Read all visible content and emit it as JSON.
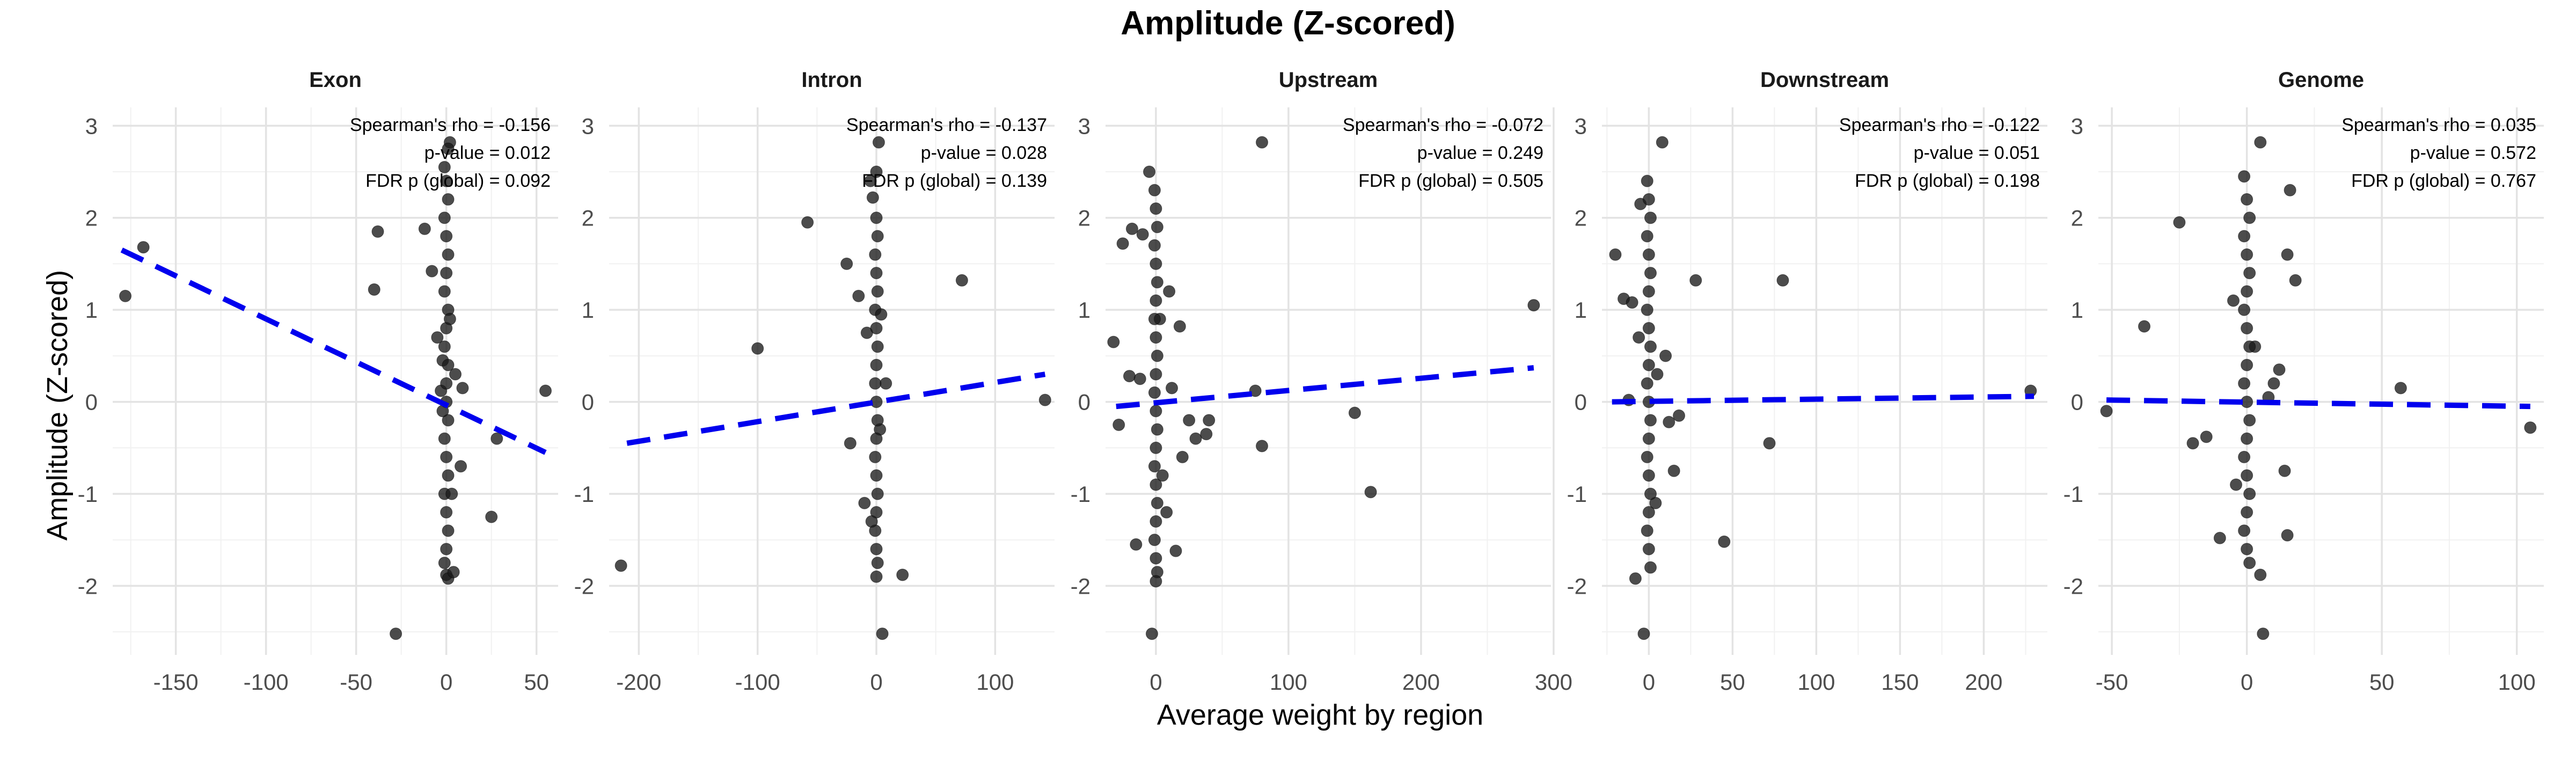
{
  "chart_data": {
    "type": "scatter",
    "title": "Amplitude (Z-scored)",
    "xlabel": "Average weight by region",
    "ylabel": "Amplitude (Z-scored)",
    "ylim": [
      -2.75,
      3.2
    ],
    "yticks": [
      -2,
      -1,
      0,
      1,
      2,
      3
    ],
    "grid": true,
    "panels": [
      {
        "name": "Exon",
        "xlim": [
          -185,
          62
        ],
        "xticks": [
          -150,
          -100,
          -50,
          0,
          50
        ],
        "xtick_labels": [
          "-150",
          "-100",
          "-50",
          "0",
          "50"
        ],
        "annotations": [
          "Spearman's rho = -0.156",
          "p-value = 0.012",
          "FDR p (global) = 0.092"
        ],
        "fit": {
          "x": [
            -180,
            55
          ],
          "y": [
            1.65,
            -0.55
          ]
        },
        "points": [
          [
            -178,
            1.15
          ],
          [
            -168,
            1.68
          ],
          [
            -38,
            1.85
          ],
          [
            -40,
            1.22
          ],
          [
            -12,
            1.88
          ],
          [
            -8,
            1.42
          ],
          [
            -28,
            -2.52
          ],
          [
            -5,
            0.7
          ],
          [
            -2,
            0.45
          ],
          [
            -3,
            0.12
          ],
          [
            5,
            0.3
          ],
          [
            8,
            -0.7
          ],
          [
            9,
            0.15
          ],
          [
            25,
            -1.25
          ],
          [
            28,
            -0.4
          ],
          [
            55,
            0.12
          ],
          [
            2,
            2.82
          ],
          [
            1,
            2.75
          ],
          [
            -1,
            2.55
          ],
          [
            0,
            2.4
          ],
          [
            1,
            2.2
          ],
          [
            -1,
            2.0
          ],
          [
            0,
            1.8
          ],
          [
            1,
            1.6
          ],
          [
            0,
            1.4
          ],
          [
            -1,
            1.2
          ],
          [
            1,
            1.0
          ],
          [
            0,
            0.8
          ],
          [
            -1,
            0.6
          ],
          [
            1,
            0.4
          ],
          [
            0,
            0.2
          ],
          [
            0,
            0.0
          ],
          [
            1,
            -0.2
          ],
          [
            -1,
            -0.4
          ],
          [
            0,
            -0.6
          ],
          [
            1,
            -0.8
          ],
          [
            -1,
            -1.0
          ],
          [
            0,
            -1.2
          ],
          [
            1,
            -1.4
          ],
          [
            0,
            -1.6
          ],
          [
            -1,
            -1.75
          ],
          [
            0,
            -1.88
          ],
          [
            1,
            -1.92
          ],
          [
            4,
            -1.85
          ],
          [
            3,
            -1.0
          ],
          [
            -2,
            -0.1
          ],
          [
            2,
            0.9
          ]
        ]
      },
      {
        "name": "Intron",
        "xlim": [
          -225,
          150
        ],
        "xticks": [
          -200,
          -100,
          0,
          100
        ],
        "xtick_labels": [
          "-200",
          "-100",
          "0",
          "100"
        ],
        "annotations": [
          "Spearman's rho = -0.137",
          "p-value = 0.028",
          "FDR p (global) = 0.139"
        ],
        "fit": {
          "x": [
            -210,
            142
          ],
          "y": [
            -0.45,
            0.3
          ]
        },
        "points": [
          [
            -215,
            -1.78
          ],
          [
            -100,
            0.58
          ],
          [
            -58,
            1.95
          ],
          [
            -25,
            1.5
          ],
          [
            -15,
            1.15
          ],
          [
            -22,
            -0.45
          ],
          [
            -10,
            -1.1
          ],
          [
            -5,
            2.4
          ],
          [
            0,
            2.5
          ],
          [
            2,
            2.82
          ],
          [
            -3,
            2.22
          ],
          [
            5,
            -2.52
          ],
          [
            22,
            -1.88
          ],
          [
            72,
            1.32
          ],
          [
            142,
            0.02
          ],
          [
            8,
            0.2
          ],
          [
            -8,
            0.75
          ],
          [
            3,
            -0.3
          ],
          [
            0,
            2.0
          ],
          [
            1,
            1.8
          ],
          [
            -1,
            1.6
          ],
          [
            0,
            1.4
          ],
          [
            1,
            1.2
          ],
          [
            -1,
            1.0
          ],
          [
            0,
            0.8
          ],
          [
            1,
            0.6
          ],
          [
            0,
            0.4
          ],
          [
            -1,
            0.2
          ],
          [
            0,
            0.0
          ],
          [
            1,
            -0.2
          ],
          [
            0,
            -0.4
          ],
          [
            -1,
            -0.6
          ],
          [
            0,
            -0.8
          ],
          [
            1,
            -1.0
          ],
          [
            0,
            -1.2
          ],
          [
            -1,
            -1.4
          ],
          [
            0,
            -1.6
          ],
          [
            1,
            -1.75
          ],
          [
            0,
            -1.9
          ],
          [
            -4,
            -1.3
          ],
          [
            4,
            0.95
          ]
        ]
      },
      {
        "name": "Upstream",
        "xlim": [
          -38,
          298
        ],
        "xticks": [
          0,
          100,
          200,
          300
        ],
        "xtick_labels": [
          "0",
          "100",
          "200",
          "300"
        ],
        "annotations": [
          "Spearman's rho = -0.072",
          "p-value = 0.249",
          "FDR p (global) = 0.505"
        ],
        "fit": {
          "x": [
            -30,
            285
          ],
          "y": [
            -0.05,
            0.37
          ]
        },
        "points": [
          [
            -32,
            0.65
          ],
          [
            -28,
            -0.25
          ],
          [
            -25,
            1.72
          ],
          [
            -20,
            0.28
          ],
          [
            -18,
            1.88
          ],
          [
            -15,
            -1.55
          ],
          [
            -10,
            1.82
          ],
          [
            -12,
            0.25
          ],
          [
            -5,
            2.5
          ],
          [
            -3,
            -2.52
          ],
          [
            5,
            -0.8
          ],
          [
            10,
            1.2
          ],
          [
            12,
            0.15
          ],
          [
            15,
            -1.62
          ],
          [
            20,
            -0.6
          ],
          [
            25,
            -0.2
          ],
          [
            30,
            -0.4
          ],
          [
            38,
            -0.35
          ],
          [
            40,
            -0.2
          ],
          [
            80,
            2.82
          ],
          [
            75,
            0.12
          ],
          [
            80,
            -0.48
          ],
          [
            150,
            -0.12
          ],
          [
            162,
            -0.98
          ],
          [
            285,
            1.05
          ],
          [
            8,
            -1.2
          ],
          [
            3,
            0.9
          ],
          [
            18,
            0.82
          ],
          [
            -1,
            2.3
          ],
          [
            0,
            2.1
          ],
          [
            1,
            1.9
          ],
          [
            -1,
            1.7
          ],
          [
            0,
            1.5
          ],
          [
            1,
            1.3
          ],
          [
            0,
            1.1
          ],
          [
            -1,
            0.9
          ],
          [
            0,
            0.7
          ],
          [
            1,
            0.5
          ],
          [
            0,
            0.3
          ],
          [
            -1,
            0.1
          ],
          [
            0,
            -0.1
          ],
          [
            1,
            -0.3
          ],
          [
            0,
            -0.5
          ],
          [
            -1,
            -0.7
          ],
          [
            0,
            -0.9
          ],
          [
            1,
            -1.1
          ],
          [
            0,
            -1.3
          ],
          [
            -1,
            -1.5
          ],
          [
            0,
            -1.7
          ],
          [
            1,
            -1.85
          ],
          [
            0,
            -1.95
          ]
        ]
      },
      {
        "name": "Downstream",
        "xlim": [
          -28,
          238
        ],
        "xticks": [
          0,
          50,
          100,
          150,
          200
        ],
        "xtick_labels": [
          "0",
          "50",
          "100",
          "150",
          "200"
        ],
        "annotations": [
          "Spearman's rho = -0.122",
          "p-value = 0.051",
          "FDR p (global) = 0.198"
        ],
        "fit": {
          "x": [
            -22,
            230
          ],
          "y": [
            0.0,
            0.06
          ]
        },
        "points": [
          [
            -20,
            1.6
          ],
          [
            -15,
            1.12
          ],
          [
            -10,
            1.08
          ],
          [
            -12,
            0.02
          ],
          [
            -8,
            -1.92
          ],
          [
            -5,
            2.15
          ],
          [
            -3,
            -2.52
          ],
          [
            8,
            2.82
          ],
          [
            10,
            0.5
          ],
          [
            12,
            -0.22
          ],
          [
            15,
            -0.75
          ],
          [
            18,
            -0.15
          ],
          [
            28,
            1.32
          ],
          [
            45,
            -1.52
          ],
          [
            72,
            -0.45
          ],
          [
            80,
            1.32
          ],
          [
            228,
            0.12
          ],
          [
            5,
            0.3
          ],
          [
            -6,
            0.7
          ],
          [
            4,
            -1.1
          ],
          [
            -1,
            2.4
          ],
          [
            0,
            2.2
          ],
          [
            1,
            2.0
          ],
          [
            -1,
            1.8
          ],
          [
            0,
            1.6
          ],
          [
            1,
            1.4
          ],
          [
            0,
            1.2
          ],
          [
            -1,
            1.0
          ],
          [
            0,
            0.8
          ],
          [
            1,
            0.6
          ],
          [
            0,
            0.4
          ],
          [
            -1,
            0.2
          ],
          [
            0,
            0.0
          ],
          [
            1,
            -0.2
          ],
          [
            0,
            -0.4
          ],
          [
            -1,
            -0.6
          ],
          [
            0,
            -0.8
          ],
          [
            1,
            -1.0
          ],
          [
            0,
            -1.2
          ],
          [
            -1,
            -1.4
          ],
          [
            0,
            -1.6
          ],
          [
            1,
            -1.8
          ]
        ]
      },
      {
        "name": "Genome",
        "xlim": [
          -55,
          110
        ],
        "xticks": [
          -50,
          0,
          50,
          100
        ],
        "xtick_labels": [
          "-50",
          "0",
          "50",
          "100"
        ],
        "annotations": [
          "Spearman's rho = 0.035",
          "p-value = 0.572",
          "FDR p (global) = 0.767"
        ],
        "fit": {
          "x": [
            -52,
            105
          ],
          "y": [
            0.02,
            -0.05
          ]
        },
        "points": [
          [
            -52,
            -0.1
          ],
          [
            -38,
            0.82
          ],
          [
            -25,
            1.95
          ],
          [
            -20,
            -0.45
          ],
          [
            -15,
            -0.38
          ],
          [
            -10,
            -1.48
          ],
          [
            -5,
            1.1
          ],
          [
            5,
            2.82
          ],
          [
            8,
            0.05
          ],
          [
            12,
            0.35
          ],
          [
            14,
            -0.75
          ],
          [
            15,
            1.6
          ],
          [
            16,
            2.3
          ],
          [
            18,
            1.32
          ],
          [
            15,
            -1.45
          ],
          [
            5,
            -1.88
          ],
          [
            6,
            -2.52
          ],
          [
            3,
            0.6
          ],
          [
            -4,
            -0.9
          ],
          [
            10,
            0.2
          ],
          [
            57,
            0.15
          ],
          [
            105,
            -0.28
          ],
          [
            -1,
            2.45
          ],
          [
            0,
            2.2
          ],
          [
            1,
            2.0
          ],
          [
            -1,
            1.8
          ],
          [
            0,
            1.6
          ],
          [
            1,
            1.4
          ],
          [
            0,
            1.2
          ],
          [
            -1,
            1.0
          ],
          [
            0,
            0.8
          ],
          [
            1,
            0.6
          ],
          [
            0,
            0.4
          ],
          [
            -1,
            0.2
          ],
          [
            0,
            0.0
          ],
          [
            1,
            -0.2
          ],
          [
            0,
            -0.4
          ],
          [
            -1,
            -0.6
          ],
          [
            0,
            -0.8
          ],
          [
            1,
            -1.0
          ],
          [
            0,
            -1.2
          ],
          [
            -1,
            -1.4
          ],
          [
            0,
            -1.6
          ],
          [
            1,
            -1.75
          ]
        ]
      }
    ]
  }
}
